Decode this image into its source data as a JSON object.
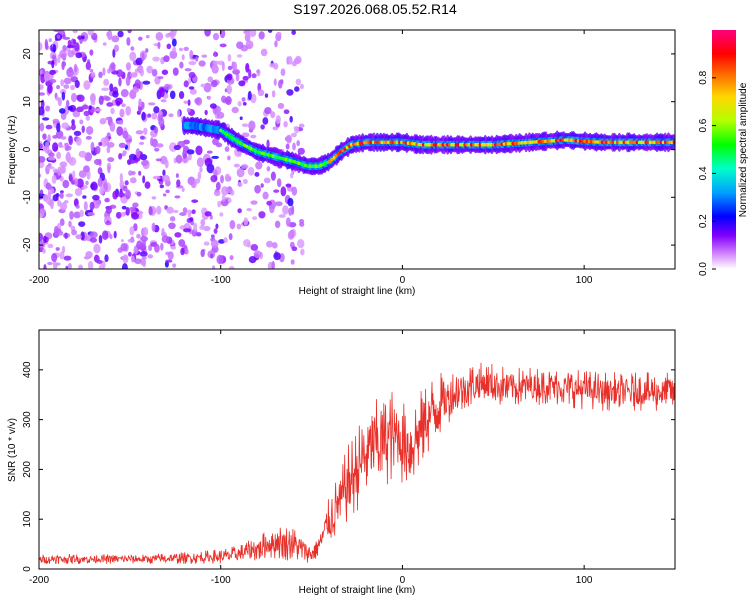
{
  "title": "S197.2026.068.05.52.R14",
  "chart_data": [
    {
      "type": "heatmap",
      "xlabel": "Height of straight line (km)",
      "ylabel": "Frequency (Hz)",
      "xlim": [
        -200,
        150
      ],
      "ylim": [
        -25,
        25
      ],
      "x_ticks": [
        -200,
        -100,
        0,
        100
      ],
      "y_ticks": [
        -20,
        -10,
        0,
        10,
        20
      ],
      "colorbar": {
        "label": "Normalized spectral amplitude",
        "range": [
          0,
          1
        ],
        "ticks": [
          0.0,
          0.2,
          0.4,
          0.6,
          0.8
        ],
        "colors": [
          "#ffffff",
          "#b400ff",
          "#5000ff",
          "#0000ff",
          "#00c8ff",
          "#00ff64",
          "#b4ff00",
          "#ffb400",
          "#ff0000",
          "#ff007f"
        ]
      },
      "ridge": {
        "x": [
          -115,
          -100,
          -90,
          -80,
          -70,
          -60,
          -52,
          -46,
          -40,
          -34,
          -28,
          -20,
          -10,
          0,
          10,
          30,
          50,
          70,
          90,
          110,
          130,
          150
        ],
        "y": [
          5,
          4,
          1.5,
          -0.5,
          -1.5,
          -2.5,
          -3.5,
          -3.5,
          -2.5,
          -0.5,
          1,
          1.5,
          1.5,
          1.5,
          1,
          1,
          1,
          1.5,
          2,
          1.5,
          1.5,
          1.5
        ]
      },
      "noise_region_x": [
        -200,
        -55
      ]
    },
    {
      "type": "line",
      "xlabel": "Height of straight line (km)",
      "ylabel": "SNR (10 * v/v)",
      "xlim": [
        -200,
        150
      ],
      "ylim": [
        0,
        480
      ],
      "x_ticks": [
        -200,
        -100,
        0,
        100
      ],
      "y_ticks": [
        0,
        100,
        200,
        300,
        400
      ],
      "series": [
        {
          "name": "SNR",
          "color": "#e8302a",
          "x": [
            -200,
            -180,
            -160,
            -140,
            -120,
            -100,
            -90,
            -80,
            -70,
            -60,
            -50,
            -45,
            -40,
            -35,
            -30,
            -25,
            -20,
            -15,
            -10,
            -5,
            0,
            5,
            10,
            15,
            20,
            25,
            30,
            35,
            40,
            50,
            60,
            80,
            100,
            120,
            150
          ],
          "y": [
            20,
            20,
            20,
            20,
            22,
            25,
            30,
            40,
            55,
            50,
            30,
            55,
            100,
            130,
            170,
            200,
            230,
            250,
            260,
            270,
            260,
            250,
            280,
            310,
            330,
            345,
            355,
            365,
            370,
            370,
            365,
            370,
            360,
            355,
            355
          ],
          "amplitude": [
            10,
            10,
            10,
            10,
            12,
            15,
            18,
            25,
            35,
            35,
            18,
            30,
            50,
            65,
            80,
            85,
            90,
            90,
            95,
            95,
            90,
            85,
            80,
            75,
            65,
            55,
            50,
            50,
            45,
            45,
            40,
            40,
            40,
            40,
            40
          ]
        }
      ]
    }
  ]
}
